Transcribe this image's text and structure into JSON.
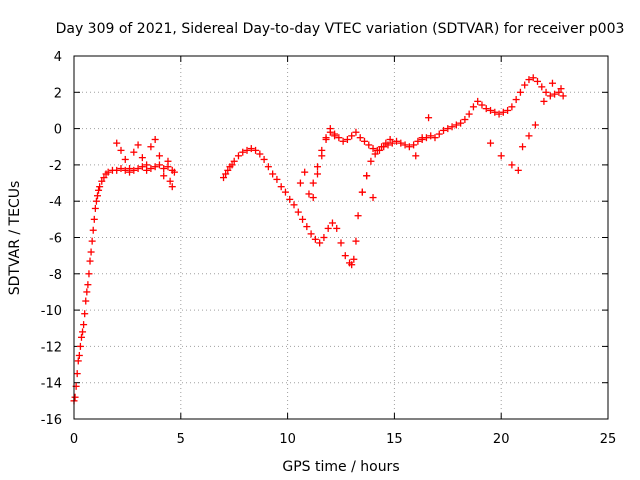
{
  "chart_data": {
    "type": "scatter",
    "title": "Day 309 of 2021, Sidereal Day-to-day VTEC variation (SDTVAR) for receiver p003",
    "xlabel": "GPS time / hours",
    "ylabel": "SDTVAR / TECUs",
    "xlim": [
      0,
      25
    ],
    "ylim": [
      -16,
      4
    ],
    "xticks": [
      "0",
      "5",
      "10",
      "15",
      "20",
      "25"
    ],
    "yticks": [
      "4",
      "2",
      "0",
      "-2",
      "-4",
      "-6",
      "-8",
      "-10",
      "-12",
      "-14",
      "-16"
    ],
    "grid": true,
    "marker": "plus",
    "series": [
      {
        "name": "SDTVAR",
        "color": "#ff0000",
        "x": [
          0.0,
          0.05,
          0.1,
          0.15,
          0.2,
          0.25,
          0.3,
          0.35,
          0.4,
          0.45,
          0.5,
          0.55,
          0.6,
          0.65,
          0.7,
          0.75,
          0.8,
          0.85,
          0.9,
          0.95,
          1.0,
          1.05,
          1.1,
          1.15,
          1.2,
          1.3,
          1.4,
          1.5,
          1.6,
          1.8,
          2.0,
          2.2,
          2.4,
          2.6,
          2.8,
          3.0,
          3.2,
          3.4,
          3.6,
          3.8,
          4.0,
          4.2,
          4.4,
          4.6,
          4.7,
          2.0,
          2.2,
          2.4,
          2.6,
          2.8,
          3.0,
          3.2,
          3.4,
          3.6,
          3.8,
          4.0,
          4.2,
          4.4,
          4.5,
          4.6,
          7.0,
          7.1,
          7.2,
          7.3,
          7.4,
          7.5,
          7.7,
          7.9,
          8.1,
          8.3,
          8.5,
          8.7,
          8.9,
          9.1,
          9.3,
          9.5,
          9.7,
          9.9,
          10.1,
          10.3,
          10.5,
          10.7,
          10.9,
          11.1,
          11.3,
          11.5,
          11.7,
          11.9,
          12.1,
          12.3,
          12.5,
          12.7,
          12.9,
          13.0,
          13.1,
          13.2,
          13.3,
          13.5,
          13.7,
          13.9,
          14.1,
          14.3,
          14.5,
          14.7,
          14.9,
          15.1,
          15.3,
          15.5,
          15.7,
          15.9,
          16.1,
          16.3,
          16.5,
          16.7,
          16.9,
          17.1,
          17.3,
          17.5,
          17.7,
          17.9,
          18.1,
          18.3,
          18.5,
          18.7,
          18.9,
          19.1,
          19.3,
          19.5,
          19.7,
          19.9,
          20.1,
          20.3,
          20.5,
          20.7,
          20.9,
          21.1,
          21.3,
          21.5,
          21.7,
          21.9,
          22.1,
          22.3,
          22.5,
          22.7,
          22.9,
          10.6,
          10.8,
          11.0,
          11.2,
          11.4,
          11.6,
          11.8,
          12.0,
          12.2,
          12.4,
          12.6,
          12.8,
          13.0,
          13.2,
          13.4,
          13.6,
          13.8,
          14.0,
          14.2,
          14.4,
          14.6,
          14.8,
          11.2,
          11.4,
          11.6,
          11.8,
          12.0,
          12.2,
          13.5,
          13.7,
          14.0,
          16.0,
          16.3,
          16.6,
          19.5,
          20.0,
          20.5,
          20.8,
          21.0,
          21.3,
          21.6,
          22.0,
          22.4,
          22.8
        ],
        "y": [
          -15.0,
          -14.8,
          -14.2,
          -13.5,
          -12.8,
          -12.5,
          -12.0,
          -11.5,
          -11.2,
          -10.8,
          -10.2,
          -9.5,
          -9.0,
          -8.6,
          -8.0,
          -7.3,
          -6.8,
          -6.2,
          -5.6,
          -5.0,
          -4.4,
          -4.0,
          -3.7,
          -3.4,
          -3.2,
          -2.9,
          -2.7,
          -2.5,
          -2.4,
          -2.3,
          -2.3,
          -2.2,
          -2.3,
          -2.4,
          -2.3,
          -2.2,
          -2.1,
          -2.0,
          -2.2,
          -2.1,
          -2.0,
          -2.2,
          -2.1,
          -2.3,
          -2.4,
          -0.8,
          -1.2,
          -1.7,
          -2.2,
          -1.3,
          -0.9,
          -1.6,
          -2.3,
          -1.0,
          -0.6,
          -1.5,
          -2.6,
          -1.8,
          -2.9,
          -3.2,
          -2.7,
          -2.5,
          -2.3,
          -2.1,
          -2.0,
          -1.8,
          -1.5,
          -1.3,
          -1.2,
          -1.1,
          -1.2,
          -1.4,
          -1.7,
          -2.1,
          -2.5,
          -2.8,
          -3.2,
          -3.5,
          -3.9,
          -4.2,
          -4.6,
          -5.0,
          -5.4,
          -5.8,
          -6.1,
          -6.3,
          -6.0,
          -5.5,
          -5.2,
          -5.5,
          -6.3,
          -7.0,
          -7.4,
          -7.5,
          -7.2,
          -6.2,
          -4.8,
          -3.5,
          -2.6,
          -1.8,
          -1.4,
          -1.2,
          -1.0,
          -0.9,
          -0.8,
          -0.7,
          -0.8,
          -0.9,
          -1.0,
          -0.9,
          -0.7,
          -0.6,
          -0.5,
          -0.4,
          -0.5,
          -0.3,
          -0.1,
          0.0,
          0.1,
          0.2,
          0.3,
          0.5,
          0.8,
          1.2,
          1.5,
          1.3,
          1.1,
          1.0,
          0.9,
          0.8,
          0.9,
          1.0,
          1.2,
          1.6,
          2.0,
          2.4,
          2.7,
          2.8,
          2.6,
          2.3,
          2.0,
          1.8,
          1.9,
          2.0,
          1.8,
          -3.0,
          -2.4,
          -3.6,
          -3.0,
          -2.1,
          -1.2,
          -0.5,
          -0.2,
          -0.3,
          -0.5,
          -0.7,
          -0.6,
          -0.4,
          -0.2,
          -0.5,
          -0.7,
          -0.9,
          -1.1,
          -1.2,
          -1.0,
          -0.8,
          -0.6,
          -3.8,
          -2.5,
          -1.5,
          -0.6,
          0.0,
          -0.4,
          -3.5,
          -2.6,
          -3.8,
          -1.5,
          -0.5,
          0.6,
          -0.8,
          -1.5,
          -2.0,
          -2.3,
          -1.0,
          -0.4,
          0.2,
          1.5,
          2.5,
          2.2
        ]
      }
    ]
  }
}
